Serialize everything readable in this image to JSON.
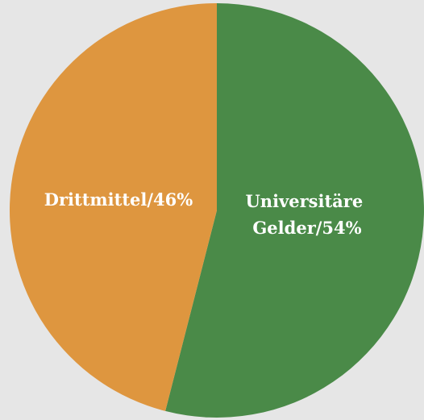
{
  "chart_data": {
    "type": "pie",
    "slices": [
      {
        "label_lines": [
          "Universitäre",
          "Gelder/54%"
        ],
        "value": 54,
        "color": "#4a8a48"
      },
      {
        "label_lines": [
          "Drittmittel/46%"
        ],
        "value": 46,
        "color": "#de963f"
      }
    ],
    "start_angle": "top (12 o'clock)",
    "direction": "clockwise",
    "legend": "none"
  }
}
